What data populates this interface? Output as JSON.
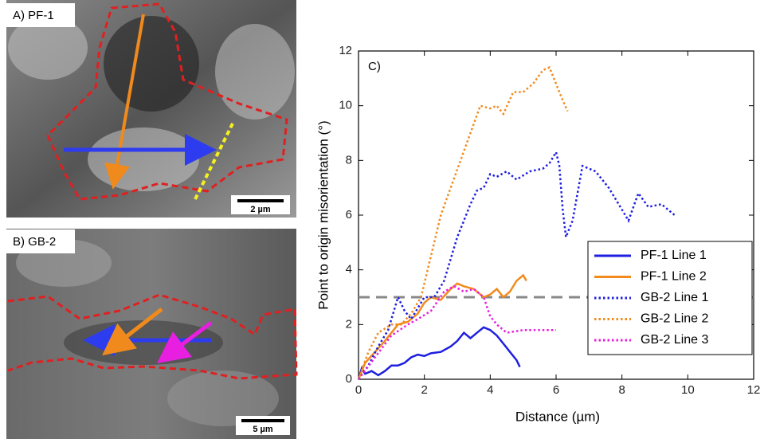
{
  "panels": {
    "a_label": "A) PF-1",
    "a_scale": "2 µm",
    "b_label": "B) GB-2",
    "b_scale": "5 µm"
  },
  "chart_data": {
    "type": "line",
    "panel_label": "C)",
    "x_label": "Distance (µm)",
    "y_label": "Point to origin misorientation (°)",
    "xlim": [
      0,
      12
    ],
    "ylim": [
      0,
      12
    ],
    "xticks": [
      0,
      2,
      4,
      6,
      8,
      10,
      12
    ],
    "yticks": [
      0,
      2,
      4,
      6,
      8,
      10,
      12
    ],
    "hline": 3,
    "legend": "right",
    "series": [
      {
        "name": "PF-1 Line 1",
        "color": "#1f1fe0",
        "style": "solid",
        "x": [
          0,
          0.1,
          0.2,
          0.4,
          0.6,
          0.8,
          1.0,
          1.2,
          1.4,
          1.6,
          1.8,
          2.0,
          2.2,
          2.5,
          2.8,
          3.0,
          3.2,
          3.4,
          3.6,
          3.8,
          4.0,
          4.2,
          4.4,
          4.6,
          4.8,
          4.9
        ],
        "values": [
          0,
          0.4,
          0.2,
          0.3,
          0.15,
          0.3,
          0.5,
          0.5,
          0.6,
          0.8,
          0.9,
          0.85,
          0.95,
          1.0,
          1.2,
          1.4,
          1.7,
          1.5,
          1.7,
          1.9,
          1.8,
          1.6,
          1.3,
          1.0,
          0.7,
          0.45
        ]
      },
      {
        "name": "PF-1 Line 2",
        "color": "#f28a1e",
        "style": "solid",
        "x": [
          0,
          0.2,
          0.5,
          0.8,
          1.0,
          1.2,
          1.5,
          1.8,
          2.0,
          2.2,
          2.5,
          2.8,
          3.0,
          3.2,
          3.5,
          3.8,
          4.0,
          4.2,
          4.4,
          4.6,
          4.8,
          5.0,
          5.1
        ],
        "values": [
          0,
          0.6,
          1.0,
          1.4,
          1.7,
          2.0,
          2.1,
          2.4,
          2.8,
          3.0,
          2.9,
          3.3,
          3.5,
          3.4,
          3.3,
          3.0,
          3.1,
          3.3,
          3.0,
          3.2,
          3.6,
          3.8,
          3.6
        ]
      },
      {
        "name": "GB-2 Line 1",
        "color": "#1f1fe0",
        "style": "dotted",
        "x": [
          0,
          0.3,
          0.6,
          0.9,
          1.2,
          1.4,
          1.6,
          2.0,
          2.3,
          2.6,
          2.8,
          3.0,
          3.2,
          3.4,
          3.6,
          3.8,
          4.0,
          4.2,
          4.5,
          4.8,
          5.2,
          5.6,
          5.8,
          6.0,
          6.1,
          6.2,
          6.3,
          6.5,
          6.8,
          7.2,
          7.6,
          8.0,
          8.2,
          8.5,
          8.8,
          9.2,
          9.6
        ],
        "values": [
          0,
          0.5,
          1.2,
          1.8,
          3.0,
          2.5,
          2.2,
          3.0,
          3.0,
          3.6,
          4.4,
          5.2,
          5.8,
          6.4,
          6.9,
          7.0,
          7.5,
          7.4,
          7.6,
          7.3,
          7.6,
          7.7,
          7.9,
          8.3,
          7.8,
          6.2,
          5.2,
          5.8,
          7.8,
          7.6,
          7.0,
          6.2,
          5.8,
          6.8,
          6.3,
          6.4,
          6.0
        ]
      },
      {
        "name": "GB-2 Line 2",
        "color": "#f28a1e",
        "style": "dotted",
        "x": [
          0,
          0.3,
          0.6,
          1.0,
          1.3,
          1.6,
          1.9,
          2.2,
          2.5,
          2.8,
          3.1,
          3.4,
          3.7,
          4.0,
          4.2,
          4.4,
          4.7,
          5.0,
          5.3,
          5.6,
          5.8,
          6.0,
          6.2,
          6.35
        ],
        "values": [
          0,
          1.0,
          1.7,
          2.0,
          2.0,
          2.4,
          3.0,
          4.5,
          6.0,
          7.0,
          8.0,
          9.0,
          10.0,
          9.9,
          10.0,
          9.7,
          10.5,
          10.5,
          10.8,
          11.3,
          11.4,
          10.8,
          10.2,
          9.8
        ]
      },
      {
        "name": "GB-2 Line 3",
        "color": "#e81ee0",
        "style": "dotted",
        "x": [
          0,
          0.5,
          1.0,
          1.5,
          1.8,
          2.2,
          2.6,
          2.9,
          3.2,
          3.5,
          3.8,
          4.0,
          4.2,
          4.5,
          5.0,
          5.5,
          6.0
        ],
        "values": [
          0,
          0.8,
          1.6,
          2.0,
          2.2,
          2.5,
          3.2,
          3.4,
          3.2,
          3.3,
          3.0,
          2.3,
          2.0,
          1.7,
          1.8,
          1.8,
          1.8
        ]
      }
    ]
  }
}
